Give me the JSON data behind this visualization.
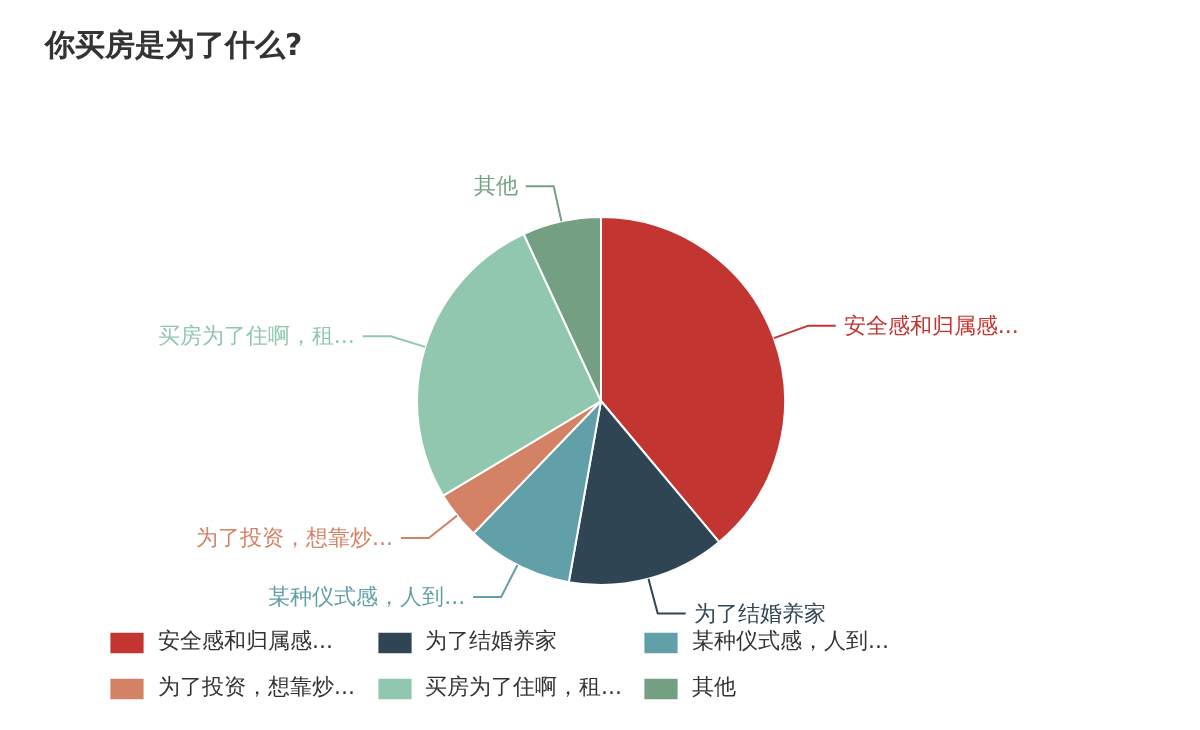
{
  "chart_data": {
    "type": "pie",
    "title": "你买房是为了什么?",
    "categories": [
      "安全感和归属感...",
      "为了结婚养家",
      "某种仪式感，人到...",
      "为了投资，想靠炒...",
      "买房为了住啊，租...",
      "其他"
    ],
    "values": [
      38.9,
      13.9,
      9.4,
      4.2,
      26.7,
      6.9
    ],
    "colors": [
      "#c23531",
      "#2f4554",
      "#61a0a8",
      "#d48265",
      "#91c7ae",
      "#749f83"
    ],
    "legend": "bottom"
  }
}
